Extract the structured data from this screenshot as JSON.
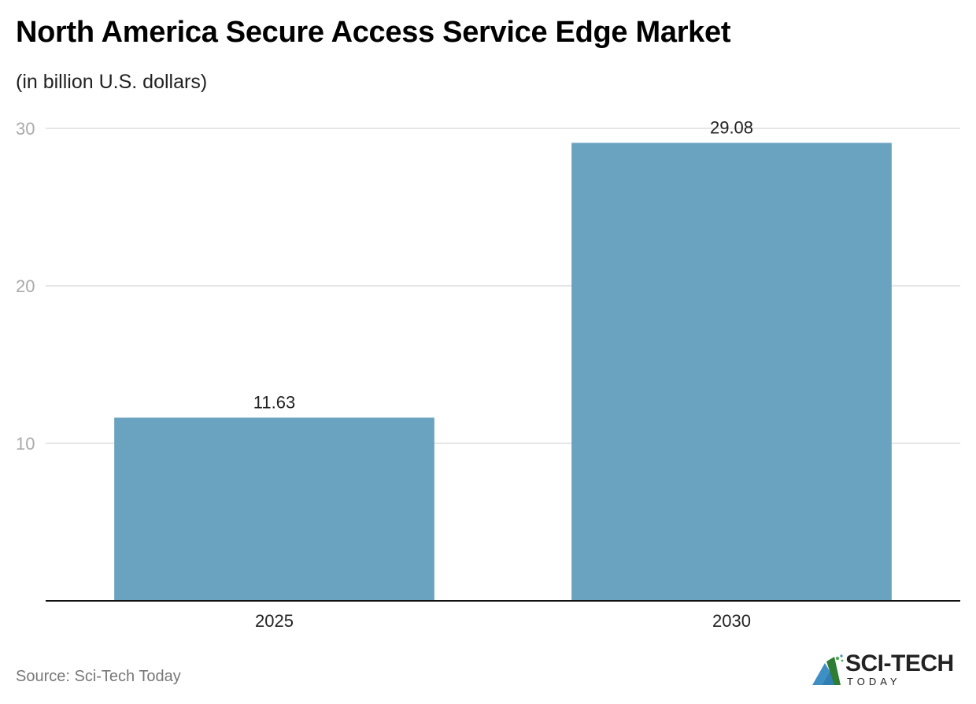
{
  "chart_data": {
    "type": "bar",
    "title": "North America Secure Access Service Edge Market",
    "subtitle": "(in billion U.S. dollars)",
    "categories": [
      "2025",
      "2030"
    ],
    "values": [
      11.63,
      29.08
    ],
    "value_labels": [
      "11.63",
      "29.08"
    ],
    "xlabel": "",
    "ylabel": "",
    "ylim": [
      0,
      30
    ],
    "yticks": [
      10,
      20,
      30
    ],
    "ytick_labels": [
      "10",
      "20",
      "30"
    ],
    "grid": true,
    "bar_color": "#6aa3c0",
    "legend": "none"
  },
  "source": "Source: Sci-Tech Today",
  "logo": {
    "main": "SCI-TECH",
    "sub": "TODAY"
  }
}
